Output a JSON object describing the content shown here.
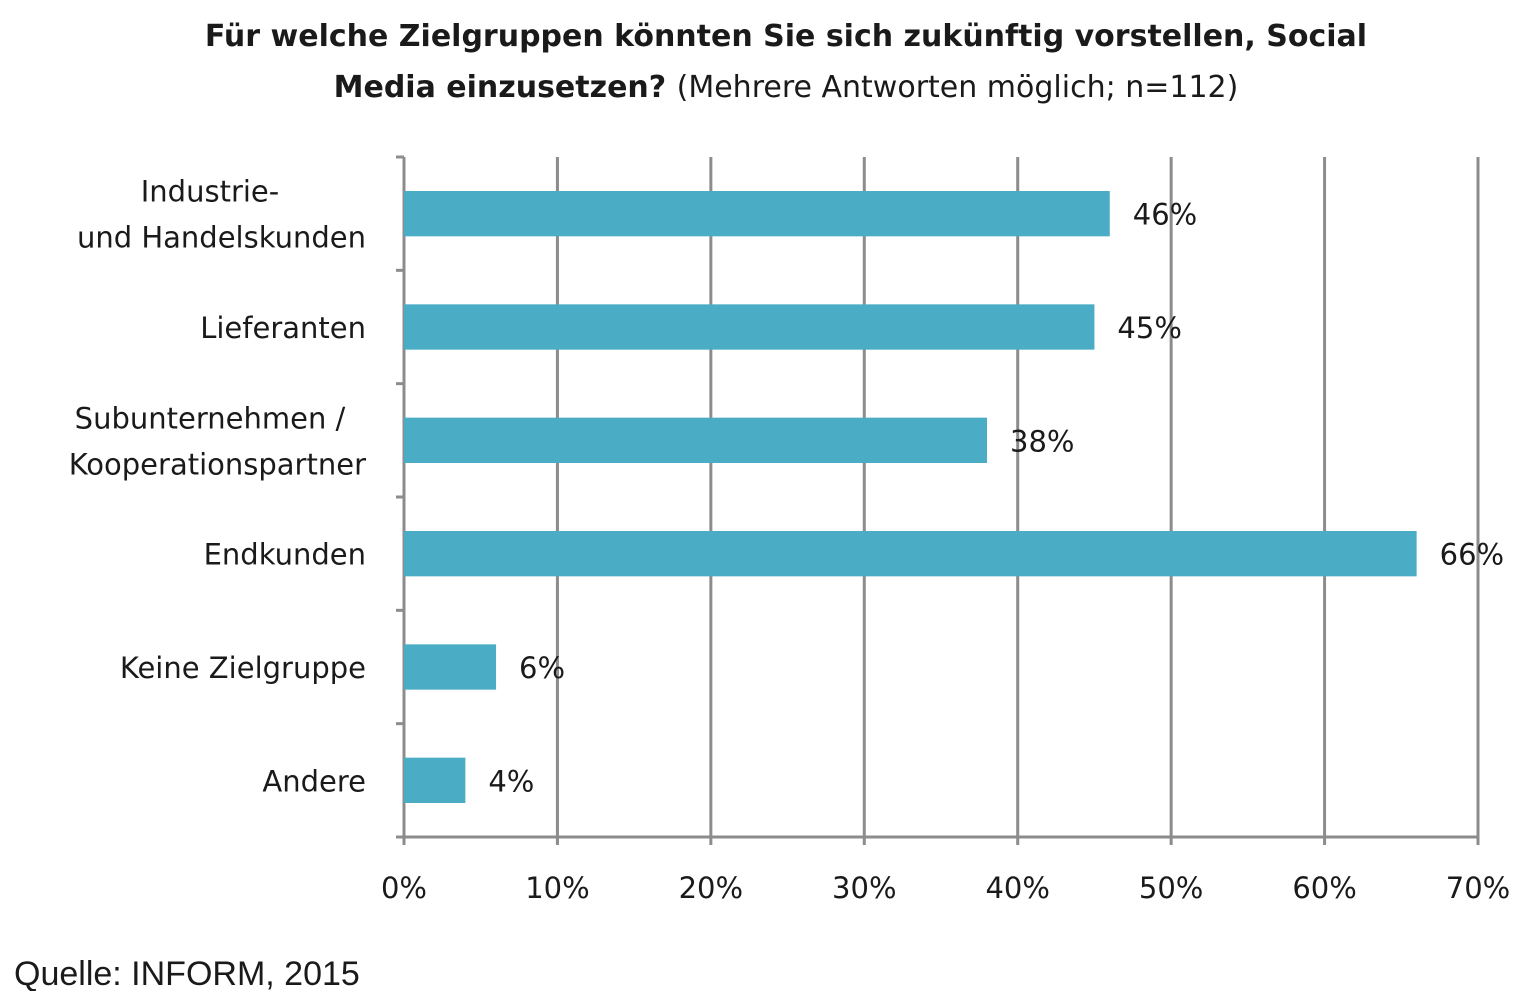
{
  "chart_data": {
    "type": "bar",
    "orientation": "horizontal",
    "title": "Für welche Zielgruppen könnten Sie sich zukünftig vorstellen, Social Media einzusetzen?",
    "subtitle": "(Mehrere Antworten möglich; n=112)",
    "categories": [
      [
        "Industrie-",
        "und Handelskunden"
      ],
      [
        "Lieferanten"
      ],
      [
        "Subunternehmen /",
        "Kooperationspartner"
      ],
      [
        "Endkunden"
      ],
      [
        "Keine Zielgruppe"
      ],
      [
        "Andere"
      ]
    ],
    "values": [
      46,
      45,
      38,
      66,
      6,
      4
    ],
    "value_labels": [
      "46%",
      "45%",
      "38%",
      "66%",
      "6%",
      "4%"
    ],
    "xlim": [
      0,
      70
    ],
    "xticks": [
      0,
      10,
      20,
      30,
      40,
      50,
      60,
      70
    ],
    "xtick_labels": [
      "0%",
      "10%",
      "20%",
      "30%",
      "40%",
      "50%",
      "60%",
      "70%"
    ],
    "grid": true,
    "bar_color": "#4bacc6",
    "grid_color": "#8c8c8c",
    "source": "Quelle: INFORM, 2015"
  }
}
